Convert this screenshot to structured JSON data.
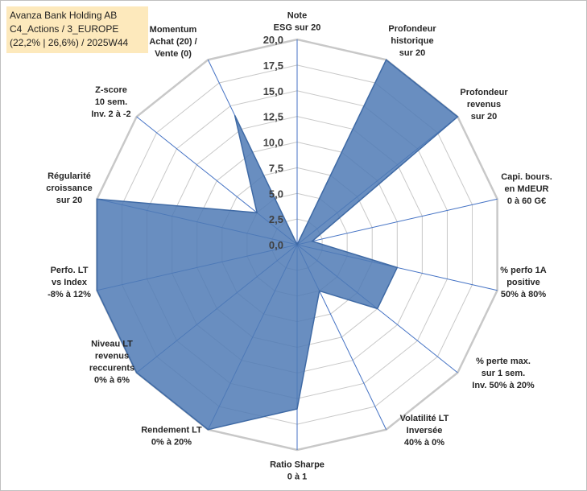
{
  "header": {
    "title_line1": "Avanza Bank Holding AB",
    "title_line2": "C4_Actions / 3_EUROPE",
    "title_line3": "(22,2% | 26,6%) / 2025W44"
  },
  "chart_data": {
    "type": "radar",
    "title": "Avanza Bank Holding AB",
    "rmin": 0,
    "rmax": 20,
    "ticks": [
      "0,0",
      "2,5",
      "5,0",
      "7,5",
      "10,0",
      "12,5",
      "15,0",
      "17,5",
      "20,0"
    ],
    "tick_values": [
      0,
      2.5,
      5,
      7.5,
      10,
      12.5,
      15,
      17.5,
      20
    ],
    "fill_color": "#4f7ab5",
    "grid_color": "#c8c8c8",
    "axis_color": "#4472c4",
    "categories": [
      [
        "Note",
        "ESG sur 20"
      ],
      [
        "Profondeur",
        "historique",
        "sur 20"
      ],
      [
        "Profondeur",
        "revenus",
        "sur 20"
      ],
      [
        "Capi. bours.",
        "en MdEUR",
        "0 à 60 G€"
      ],
      [
        "% perfo 1A",
        "positive",
        "50% à 80%"
      ],
      [
        "% perte max.",
        "sur 1 sem.",
        "Inv. 50% à 20%"
      ],
      [
        "Volatilité LT",
        "Inversée",
        "40% à 0%"
      ],
      [
        "Ratio Sharpe",
        "0 à 1"
      ],
      [
        "Rendement LT",
        "0% à 20%"
      ],
      [
        "Niveau LT",
        "revenus",
        "reccurents",
        "0% à 6%"
      ],
      [
        "Perfo. LT",
        "vs Index",
        "-8% à 12%"
      ],
      [
        "Régularité",
        "croissance",
        "sur 20"
      ],
      [
        "Z-score",
        "10 sem.",
        "Inv. 2 à -2"
      ],
      [
        "Momentum",
        "Achat (20) /",
        "Vente (0)"
      ]
    ],
    "values": [
      0,
      20,
      20,
      1.5,
      10,
      10,
      5,
      16,
      20,
      20,
      20,
      20,
      5,
      14
    ]
  }
}
